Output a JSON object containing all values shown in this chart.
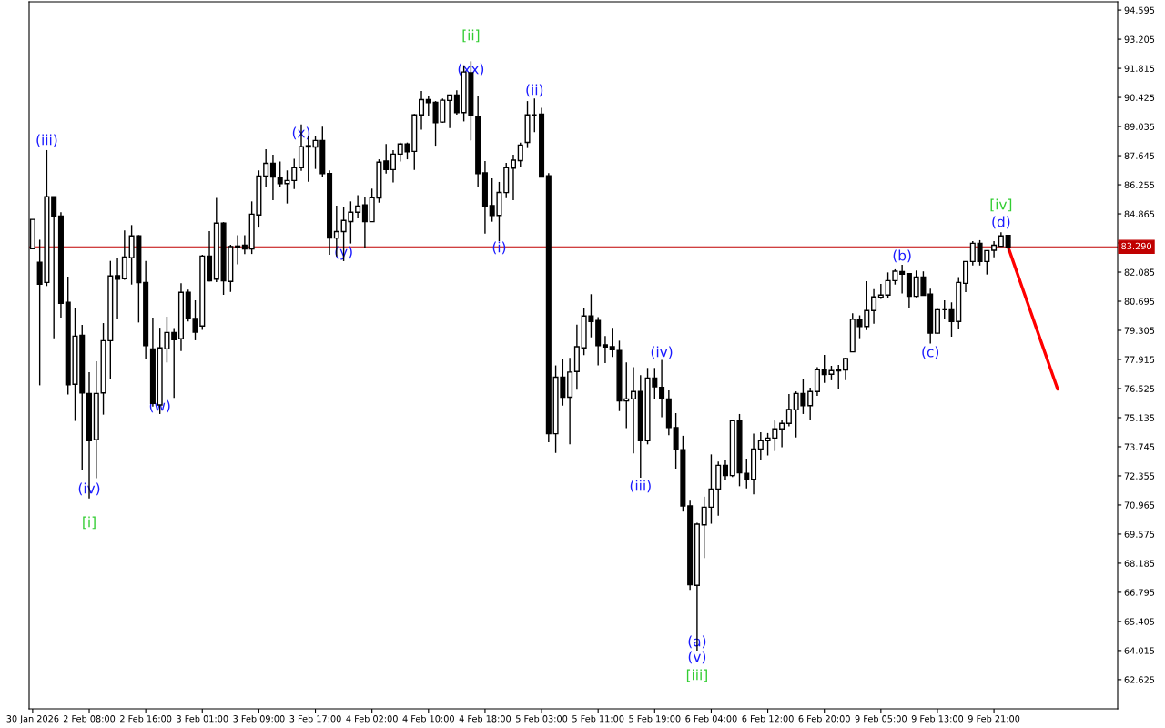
{
  "chart_data": {
    "type": "candlestick",
    "categories": [
      "30 Jan 2026",
      null,
      null,
      null,
      null,
      null,
      null,
      null,
      "2 Feb 08:00",
      null,
      null,
      null,
      null,
      null,
      null,
      null,
      "2 Feb 16:00",
      null,
      null,
      null,
      null,
      null,
      null,
      null,
      "3 Feb 01:00",
      null,
      null,
      null,
      null,
      null,
      null,
      null,
      "3 Feb 09:00",
      null,
      null,
      null,
      null,
      null,
      null,
      null,
      "3 Feb 17:00",
      null,
      null,
      null,
      null,
      null,
      null,
      null,
      "4 Feb 02:00",
      null,
      null,
      null,
      null,
      null,
      null,
      null,
      "4 Feb 10:00",
      null,
      null,
      null,
      null,
      null,
      null,
      null,
      "4 Feb 18:00",
      null,
      null,
      null,
      null,
      null,
      null,
      null,
      "5 Feb 03:00",
      null,
      null,
      null,
      null,
      null,
      null,
      null,
      "5 Feb 11:00",
      null,
      null,
      null,
      null,
      null,
      null,
      null,
      "5 Feb 19:00",
      null,
      null,
      null,
      null,
      null,
      null,
      null,
      "6 Feb 04:00",
      null,
      null,
      null,
      null,
      null,
      null,
      null,
      "6 Feb 12:00",
      null,
      null,
      null,
      null,
      null,
      null,
      null,
      "6 Feb 20:00",
      null,
      null,
      null,
      null,
      null,
      null,
      null,
      "9 Feb 05:00",
      null,
      null,
      null,
      null,
      null,
      null,
      null,
      "9 Feb 13:00",
      null,
      null,
      null,
      null,
      null,
      null,
      null,
      "9 Feb 21:00",
      null,
      null,
      null,
      null,
      null,
      null,
      null,
      null,
      null,
      null,
      null,
      null,
      null,
      null,
      null,
      null,
      null
    ],
    "ohlc": [
      [
        83.2,
        84.6,
        83.2,
        84.6
      ],
      [
        82.55,
        83.63,
        76.68,
        81.51
      ],
      [
        81.59,
        87.91,
        81.42,
        85.68
      ],
      [
        85.68,
        85.68,
        78.93,
        84.75
      ],
      [
        84.76,
        84.94,
        79.91,
        80.59
      ],
      [
        80.64,
        81.87,
        76.24,
        76.71
      ],
      [
        76.73,
        80.35,
        74.98,
        79.03
      ],
      [
        79.07,
        79.57,
        72.63,
        76.32
      ],
      [
        76.29,
        77.31,
        71.28,
        74.03
      ],
      [
        74.08,
        77.83,
        72.24,
        76.29
      ],
      [
        76.32,
        79.65,
        75.28,
        78.81
      ],
      [
        78.81,
        82.62,
        76.97,
        81.9
      ],
      [
        81.91,
        82.74,
        79.87,
        81.75
      ],
      [
        81.77,
        84.07,
        81.72,
        82.81
      ],
      [
        82.77,
        84.33,
        81.49,
        83.81
      ],
      [
        83.81,
        83.85,
        79.68,
        81.58
      ],
      [
        81.59,
        82.62,
        77.92,
        78.58
      ],
      [
        78.42,
        79.91,
        75.67,
        75.82
      ],
      [
        75.74,
        79.43,
        75.31,
        78.47
      ],
      [
        78.42,
        79.96,
        77.77,
        79.2
      ],
      [
        79.2,
        79.41,
        76.08,
        78.86
      ],
      [
        78.9,
        81.55,
        78.32,
        81.12
      ],
      [
        81.12,
        81.25,
        79.73,
        79.87
      ],
      [
        79.87,
        80.74,
        78.83,
        79.22
      ],
      [
        79.51,
        82.91,
        79.33,
        82.85
      ],
      [
        82.85,
        84.04,
        81.64,
        81.67
      ],
      [
        81.75,
        85.63,
        81.61,
        84.42
      ],
      [
        84.42,
        84.47,
        81.0,
        81.67
      ],
      [
        81.64,
        83.39,
        81.14,
        83.3
      ],
      [
        83.33,
        83.85,
        82.45,
        83.29
      ],
      [
        83.37,
        83.85,
        82.94,
        83.19
      ],
      [
        83.19,
        85.46,
        82.95,
        84.85
      ],
      [
        84.81,
        86.94,
        84.21,
        86.67
      ],
      [
        86.67,
        87.95,
        86.17,
        87.28
      ],
      [
        87.28,
        87.69,
        85.52,
        86.62
      ],
      [
        86.62,
        87.37,
        86.14,
        86.31
      ],
      [
        86.31,
        86.94,
        85.36,
        86.46
      ],
      [
        86.46,
        87.5,
        86.05,
        87.07
      ],
      [
        87.07,
        89.14,
        86.92,
        88.07
      ],
      [
        88.12,
        88.6,
        86.4,
        88.06
      ],
      [
        88.06,
        88.6,
        87.01,
        88.37
      ],
      [
        88.37,
        89.03,
        86.65,
        86.79
      ],
      [
        86.79,
        86.94,
        82.91,
        83.71
      ],
      [
        83.71,
        85.26,
        82.84,
        84.02
      ],
      [
        84.02,
        85.2,
        82.61,
        84.55
      ],
      [
        84.5,
        85.46,
        83.45,
        84.94
      ],
      [
        84.94,
        85.76,
        84.65,
        85.24
      ],
      [
        85.29,
        85.69,
        83.24,
        84.49
      ],
      [
        84.49,
        86.07,
        84.49,
        85.63
      ],
      [
        85.62,
        87.47,
        85.4,
        87.33
      ],
      [
        87.39,
        88.2,
        86.79,
        86.98
      ],
      [
        86.98,
        87.91,
        86.36,
        87.72
      ],
      [
        87.72,
        88.27,
        87.36,
        88.2
      ],
      [
        88.2,
        88.27,
        87.47,
        87.83
      ],
      [
        87.85,
        89.64,
        86.96,
        89.59
      ],
      [
        89.59,
        90.73,
        88.88,
        90.32
      ],
      [
        90.32,
        90.5,
        89.53,
        90.18
      ],
      [
        90.19,
        90.25,
        88.12,
        89.22
      ],
      [
        89.25,
        90.37,
        89.21,
        90.29
      ],
      [
        90.28,
        90.54,
        88.96,
        90.54
      ],
      [
        90.54,
        90.77,
        89.6,
        89.7
      ],
      [
        89.7,
        91.96,
        89.28,
        91.64
      ],
      [
        91.6,
        92.15,
        88.37,
        89.57
      ],
      [
        89.5,
        90.47,
        86.14,
        86.79
      ],
      [
        86.82,
        87.39,
        83.92,
        85.23
      ],
      [
        85.26,
        86.56,
        84.49,
        84.79
      ],
      [
        84.79,
        86.39,
        83.56,
        85.89
      ],
      [
        85.88,
        87.3,
        85.62,
        87.07
      ],
      [
        87.05,
        87.69,
        85.52,
        87.43
      ],
      [
        87.41,
        88.27,
        87.08,
        88.15
      ],
      [
        88.28,
        90.25,
        88.01,
        89.59
      ],
      [
        89.59,
        90.37,
        88.77,
        89.59
      ],
      [
        89.63,
        89.93,
        86.62,
        86.62
      ],
      [
        86.68,
        86.81,
        73.96,
        74.37
      ],
      [
        74.37,
        77.63,
        73.45,
        77.07
      ],
      [
        77.07,
        77.92,
        75.71,
        76.11
      ],
      [
        76.11,
        77.99,
        73.86,
        77.31
      ],
      [
        77.34,
        79.58,
        76.47,
        78.52
      ],
      [
        78.47,
        80.38,
        78.12,
        79.99
      ],
      [
        79.99,
        81.03,
        78.97,
        79.73
      ],
      [
        79.77,
        79.94,
        77.63,
        78.58
      ],
      [
        78.61,
        79.03,
        77.74,
        78.51
      ],
      [
        78.52,
        79.42,
        78.03,
        78.38
      ],
      [
        78.34,
        78.81,
        75.45,
        75.93
      ],
      [
        75.93,
        77.77,
        74.63,
        76.03
      ],
      [
        76.03,
        77.55,
        73.43,
        76.38
      ],
      [
        76.38,
        77.16,
        72.27,
        74.03
      ],
      [
        74.03,
        77.51,
        73.86,
        77.03
      ],
      [
        77.03,
        77.51,
        76.03,
        76.61
      ],
      [
        76.58,
        77.89,
        75.16,
        76.03
      ],
      [
        76.03,
        76.44,
        74.3,
        74.66
      ],
      [
        74.66,
        75.35,
        72.7,
        73.6
      ],
      [
        73.6,
        74.27,
        70.65,
        70.92
      ],
      [
        70.92,
        71.21,
        66.91,
        67.16
      ],
      [
        67.13,
        70.12,
        64.01,
        70.05
      ],
      [
        70.02,
        71.36,
        68.43,
        70.86
      ],
      [
        70.86,
        73.38,
        70.07,
        71.73
      ],
      [
        71.73,
        73.04,
        70.45,
        72.86
      ],
      [
        72.86,
        73.14,
        72.15,
        72.37
      ],
      [
        72.37,
        75.05,
        72.3,
        74.99
      ],
      [
        74.99,
        75.31,
        71.86,
        72.5
      ],
      [
        72.47,
        73.18,
        71.76,
        72.19
      ],
      [
        72.19,
        74.37,
        71.47,
        73.64
      ],
      [
        73.64,
        74.44,
        73.11,
        74.03
      ],
      [
        74.03,
        74.4,
        73.33,
        74.16
      ],
      [
        74.16,
        75.0,
        73.54,
        74.6
      ],
      [
        74.6,
        75.0,
        73.72,
        74.86
      ],
      [
        74.86,
        76.26,
        74.72,
        75.53
      ],
      [
        75.51,
        76.39,
        74.19,
        76.29
      ],
      [
        76.29,
        77.0,
        75.31,
        75.71
      ],
      [
        75.71,
        76.57,
        75.02,
        76.38
      ],
      [
        76.38,
        77.55,
        76.18,
        77.42
      ],
      [
        77.42,
        78.13,
        76.8,
        77.19
      ],
      [
        77.21,
        77.61,
        76.92,
        77.38
      ],
      [
        77.41,
        77.65,
        76.5,
        77.37
      ],
      [
        77.41,
        77.99,
        76.93,
        77.96
      ],
      [
        78.28,
        80.12,
        78.28,
        79.83
      ],
      [
        79.83,
        80.02,
        78.93,
        79.49
      ],
      [
        79.49,
        81.65,
        79.32,
        80.25
      ],
      [
        80.25,
        81.27,
        79.62,
        80.9
      ],
      [
        80.88,
        81.52,
        80.8,
        80.99
      ],
      [
        80.99,
        82.07,
        80.84,
        81.68
      ],
      [
        81.68,
        82.22,
        81.49,
        82.13
      ],
      [
        82.11,
        82.43,
        81.06,
        81.98
      ],
      [
        82.01,
        82.04,
        80.35,
        80.93
      ],
      [
        80.93,
        82.16,
        80.88,
        81.85
      ],
      [
        81.85,
        82.12,
        80.97,
        80.97
      ],
      [
        81.03,
        81.29,
        78.67,
        79.17
      ],
      [
        79.17,
        80.33,
        79.15,
        80.29
      ],
      [
        80.29,
        80.74,
        79.84,
        80.29
      ],
      [
        80.29,
        80.64,
        79.0,
        79.73
      ],
      [
        79.73,
        81.85,
        79.36,
        81.59
      ],
      [
        81.55,
        82.59,
        81.13,
        82.59
      ],
      [
        82.59,
        83.56,
        82.4,
        83.46
      ],
      [
        83.46,
        83.61,
        82.4,
        82.59
      ],
      [
        82.59,
        83.13,
        81.97,
        83.11
      ],
      [
        83.13,
        83.56,
        82.79,
        83.37
      ],
      [
        83.32,
        83.99,
        83.3,
        83.81
      ],
      [
        83.84,
        83.87,
        83.06,
        83.29
      ],
      null,
      null,
      null,
      null,
      null,
      null,
      null,
      null,
      null,
      null,
      null,
      null,
      null,
      null,
      null
    ],
    "series": [
      {
        "type": "line",
        "color": "#ff0000",
        "values": [
          null,
          null,
          null,
          null,
          null,
          null,
          null,
          null,
          null,
          null,
          null,
          null,
          null,
          null,
          null,
          null,
          null,
          null,
          null,
          null,
          null,
          null,
          null,
          null,
          null,
          null,
          null,
          null,
          null,
          null,
          null,
          null,
          null,
          null,
          null,
          null,
          null,
          null,
          null,
          null,
          null,
          null,
          null,
          null,
          null,
          null,
          null,
          null,
          null,
          null,
          null,
          null,
          null,
          null,
          null,
          null,
          null,
          null,
          null,
          null,
          null,
          null,
          null,
          null,
          null,
          null,
          null,
          null,
          null,
          null,
          null,
          null,
          null,
          null,
          null,
          null,
          null,
          null,
          null,
          null,
          null,
          null,
          null,
          null,
          null,
          null,
          null,
          null,
          null,
          null,
          null,
          null,
          null,
          null,
          null,
          null,
          null,
          null,
          null,
          null,
          null,
          null,
          null,
          null,
          null,
          null,
          null,
          null,
          null,
          null,
          null,
          null,
          null,
          null,
          null,
          null,
          null,
          null,
          null,
          null,
          null,
          null,
          null,
          null,
          null,
          null,
          null,
          null,
          null,
          null,
          null,
          null,
          null,
          null,
          null,
          null,
          null,
          null,
          83.29,
          82.32,
          81.35,
          80.38,
          79.41,
          78.44,
          77.47,
          76.5,
          null,
          null,
          null,
          null,
          null,
          null,
          null,
          null
        ]
      }
    ],
    "annotations": [
      "(iii)",
      "(iv)",
      "[i]",
      "(w)",
      "(x)",
      "(y)",
      "[ii]",
      "(xx)",
      "(i)",
      "(ii)",
      "(iii)",
      "(iv)",
      "(a)",
      "(v)",
      "[iii]",
      "(b)",
      "(c)",
      "(d)",
      "[iv]"
    ],
    "ref_lines": [
      {
        "axis": "y",
        "value": 83.29,
        "label": "83.290",
        "color": "#c00000"
      }
    ],
    "ylim": [
      61.23,
      94.99
    ],
    "yticks": [
      62.625,
      64.015,
      65.405,
      66.795,
      68.185,
      69.575,
      70.965,
      72.355,
      73.745,
      75.135,
      76.525,
      77.915,
      79.305,
      80.695,
      82.085,
      {
        "value": 83.475,
        "label": null
      },
      84.865,
      86.255,
      87.645,
      89.035,
      90.425,
      91.815,
      93.205,
      94.595
    ]
  }
}
